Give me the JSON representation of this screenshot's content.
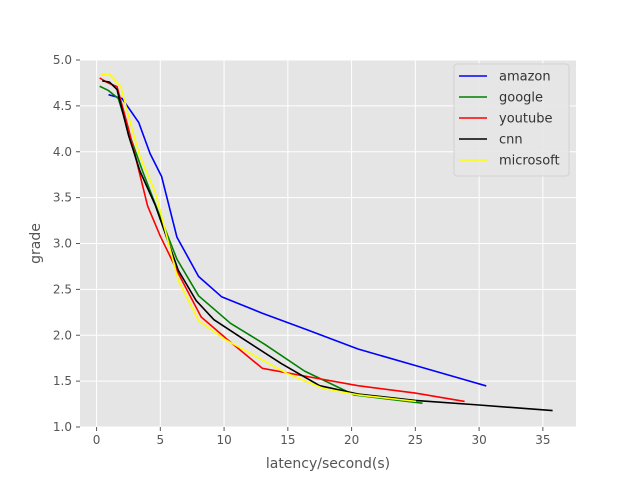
{
  "chart_data": {
    "type": "line",
    "title": "",
    "xlabel": "latency/second(s)",
    "ylabel": "grade",
    "xlim": [
      -1.3,
      37.6
    ],
    "ylim": [
      1.0,
      5.0
    ],
    "xticks": [
      0,
      5,
      10,
      15,
      20,
      25,
      30,
      35
    ],
    "yticks": [
      1.0,
      1.5,
      2.0,
      2.5,
      3.0,
      3.5,
      4.0,
      4.5,
      5.0
    ],
    "xtick_labels": [
      "0",
      "5",
      "10",
      "15",
      "20",
      "25",
      "30",
      "35"
    ],
    "ytick_labels": [
      "1.0",
      "1.5",
      "2.0",
      "2.5",
      "3.0",
      "3.5",
      "4.0",
      "4.5",
      "5.0"
    ],
    "grid": true,
    "style": "ggplot",
    "background_color": "#e5e5e5",
    "legend_position": "top-right",
    "series": [
      {
        "name": "amazon",
        "color": "#0000ff",
        "x": [
          1.0,
          2.0,
          3.3,
          4.2,
          5.1,
          6.3,
          8.0,
          9.8,
          13.0,
          16.5,
          20.5,
          25.0,
          30.5
        ],
        "y": [
          4.62,
          4.58,
          4.32,
          3.98,
          3.73,
          3.07,
          2.64,
          2.42,
          2.24,
          2.06,
          1.85,
          1.67,
          1.45
        ]
      },
      {
        "name": "google",
        "color": "#008000",
        "x": [
          0.3,
          0.9,
          1.7,
          2.6,
          3.6,
          4.9,
          6.3,
          8.0,
          10.5,
          13.2,
          16.3,
          20.2,
          25.5
        ],
        "y": [
          4.71,
          4.67,
          4.58,
          4.18,
          3.79,
          3.32,
          2.83,
          2.43,
          2.13,
          1.9,
          1.61,
          1.35,
          1.26
        ]
      },
      {
        "name": "youtube",
        "color": "#ff0000",
        "x": [
          0.3,
          0.9,
          1.6,
          2.5,
          3.2,
          4.0,
          5.0,
          6.5,
          8.2,
          10.2,
          13.0,
          16.5,
          20.5,
          25.0,
          28.8
        ],
        "y": [
          4.8,
          4.75,
          4.71,
          4.25,
          3.86,
          3.41,
          3.08,
          2.65,
          2.2,
          1.96,
          1.64,
          1.55,
          1.45,
          1.37,
          1.28
        ]
      },
      {
        "name": "cnn",
        "color": "#000000",
        "x": [
          0.5,
          1.0,
          1.6,
          2.5,
          3.4,
          4.6,
          6.4,
          7.8,
          9.2,
          11.5,
          14.5,
          17.5,
          20.5,
          25.0,
          30.0,
          35.7
        ],
        "y": [
          4.77,
          4.76,
          4.68,
          4.18,
          3.79,
          3.42,
          2.71,
          2.38,
          2.17,
          1.96,
          1.69,
          1.45,
          1.36,
          1.29,
          1.24,
          1.18
        ]
      },
      {
        "name": "microsoft",
        "color": "#ffff00",
        "x": [
          0.4,
          1.0,
          1.9,
          2.7,
          3.4,
          4.6,
          6.4,
          8.0,
          10.0,
          12.5,
          15.0,
          17.8,
          20.5,
          25.0
        ],
        "y": [
          4.84,
          4.85,
          4.71,
          4.29,
          3.95,
          3.56,
          2.6,
          2.16,
          1.96,
          1.77,
          1.58,
          1.42,
          1.35,
          1.28
        ]
      }
    ]
  }
}
